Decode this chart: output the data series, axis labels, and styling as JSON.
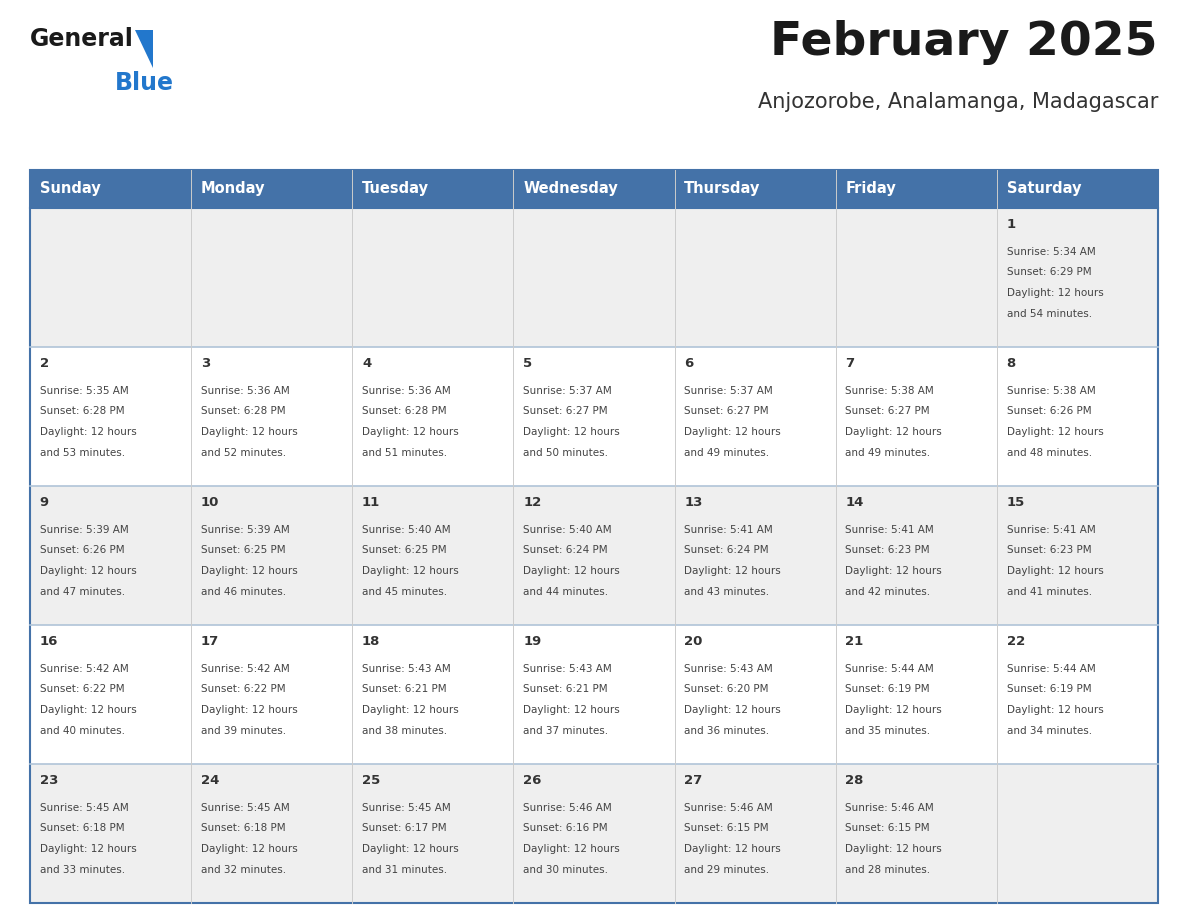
{
  "title": "February 2025",
  "subtitle": "Anjozorobe, Analamanga, Madagascar",
  "days_of_week": [
    "Sunday",
    "Monday",
    "Tuesday",
    "Wednesday",
    "Thursday",
    "Friday",
    "Saturday"
  ],
  "header_bg": "#4472A8",
  "header_text": "#FFFFFF",
  "row_bg_light": "#EFEFEF",
  "row_bg_white": "#FFFFFF",
  "cell_border_color": "#4472A8",
  "row_border_color": "#B0C4D8",
  "day_num_color": "#333333",
  "cell_text_color": "#444444",
  "title_color": "#1a1a1a",
  "subtitle_color": "#333333",
  "logo_general_color": "#1a1a1a",
  "logo_blue_color": "#2277CC",
  "calendar_data": [
    {
      "day": 1,
      "col": 6,
      "row": 0,
      "sunrise": "5:34 AM",
      "sunset": "6:29 PM",
      "daylight": "12 hours and 54 minutes"
    },
    {
      "day": 2,
      "col": 0,
      "row": 1,
      "sunrise": "5:35 AM",
      "sunset": "6:28 PM",
      "daylight": "12 hours and 53 minutes"
    },
    {
      "day": 3,
      "col": 1,
      "row": 1,
      "sunrise": "5:36 AM",
      "sunset": "6:28 PM",
      "daylight": "12 hours and 52 minutes"
    },
    {
      "day": 4,
      "col": 2,
      "row": 1,
      "sunrise": "5:36 AM",
      "sunset": "6:28 PM",
      "daylight": "12 hours and 51 minutes"
    },
    {
      "day": 5,
      "col": 3,
      "row": 1,
      "sunrise": "5:37 AM",
      "sunset": "6:27 PM",
      "daylight": "12 hours and 50 minutes"
    },
    {
      "day": 6,
      "col": 4,
      "row": 1,
      "sunrise": "5:37 AM",
      "sunset": "6:27 PM",
      "daylight": "12 hours and 49 minutes"
    },
    {
      "day": 7,
      "col": 5,
      "row": 1,
      "sunrise": "5:38 AM",
      "sunset": "6:27 PM",
      "daylight": "12 hours and 49 minutes"
    },
    {
      "day": 8,
      "col": 6,
      "row": 1,
      "sunrise": "5:38 AM",
      "sunset": "6:26 PM",
      "daylight": "12 hours and 48 minutes"
    },
    {
      "day": 9,
      "col": 0,
      "row": 2,
      "sunrise": "5:39 AM",
      "sunset": "6:26 PM",
      "daylight": "12 hours and 47 minutes"
    },
    {
      "day": 10,
      "col": 1,
      "row": 2,
      "sunrise": "5:39 AM",
      "sunset": "6:25 PM",
      "daylight": "12 hours and 46 minutes"
    },
    {
      "day": 11,
      "col": 2,
      "row": 2,
      "sunrise": "5:40 AM",
      "sunset": "6:25 PM",
      "daylight": "12 hours and 45 minutes"
    },
    {
      "day": 12,
      "col": 3,
      "row": 2,
      "sunrise": "5:40 AM",
      "sunset": "6:24 PM",
      "daylight": "12 hours and 44 minutes"
    },
    {
      "day": 13,
      "col": 4,
      "row": 2,
      "sunrise": "5:41 AM",
      "sunset": "6:24 PM",
      "daylight": "12 hours and 43 minutes"
    },
    {
      "day": 14,
      "col": 5,
      "row": 2,
      "sunrise": "5:41 AM",
      "sunset": "6:23 PM",
      "daylight": "12 hours and 42 minutes"
    },
    {
      "day": 15,
      "col": 6,
      "row": 2,
      "sunrise": "5:41 AM",
      "sunset": "6:23 PM",
      "daylight": "12 hours and 41 minutes"
    },
    {
      "day": 16,
      "col": 0,
      "row": 3,
      "sunrise": "5:42 AM",
      "sunset": "6:22 PM",
      "daylight": "12 hours and 40 minutes"
    },
    {
      "day": 17,
      "col": 1,
      "row": 3,
      "sunrise": "5:42 AM",
      "sunset": "6:22 PM",
      "daylight": "12 hours and 39 minutes"
    },
    {
      "day": 18,
      "col": 2,
      "row": 3,
      "sunrise": "5:43 AM",
      "sunset": "6:21 PM",
      "daylight": "12 hours and 38 minutes"
    },
    {
      "day": 19,
      "col": 3,
      "row": 3,
      "sunrise": "5:43 AM",
      "sunset": "6:21 PM",
      "daylight": "12 hours and 37 minutes"
    },
    {
      "day": 20,
      "col": 4,
      "row": 3,
      "sunrise": "5:43 AM",
      "sunset": "6:20 PM",
      "daylight": "12 hours and 36 minutes"
    },
    {
      "day": 21,
      "col": 5,
      "row": 3,
      "sunrise": "5:44 AM",
      "sunset": "6:19 PM",
      "daylight": "12 hours and 35 minutes"
    },
    {
      "day": 22,
      "col": 6,
      "row": 3,
      "sunrise": "5:44 AM",
      "sunset": "6:19 PM",
      "daylight": "12 hours and 34 minutes"
    },
    {
      "day": 23,
      "col": 0,
      "row": 4,
      "sunrise": "5:45 AM",
      "sunset": "6:18 PM",
      "daylight": "12 hours and 33 minutes"
    },
    {
      "day": 24,
      "col": 1,
      "row": 4,
      "sunrise": "5:45 AM",
      "sunset": "6:18 PM",
      "daylight": "12 hours and 32 minutes"
    },
    {
      "day": 25,
      "col": 2,
      "row": 4,
      "sunrise": "5:45 AM",
      "sunset": "6:17 PM",
      "daylight": "12 hours and 31 minutes"
    },
    {
      "day": 26,
      "col": 3,
      "row": 4,
      "sunrise": "5:46 AM",
      "sunset": "6:16 PM",
      "daylight": "12 hours and 30 minutes"
    },
    {
      "day": 27,
      "col": 4,
      "row": 4,
      "sunrise": "5:46 AM",
      "sunset": "6:15 PM",
      "daylight": "12 hours and 29 minutes"
    },
    {
      "day": 28,
      "col": 5,
      "row": 4,
      "sunrise": "5:46 AM",
      "sunset": "6:15 PM",
      "daylight": "12 hours and 28 minutes"
    }
  ]
}
